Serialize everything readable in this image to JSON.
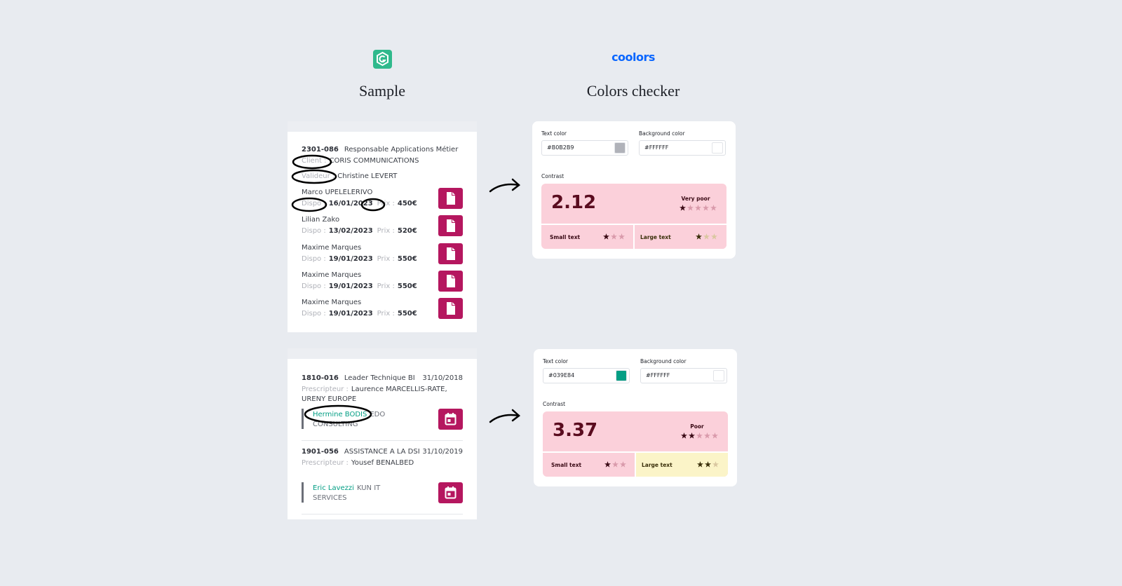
{
  "brand": "coolors",
  "sample": {
    "title": "Sample",
    "panels": [
      {
        "ref": "2301-086",
        "job": "Responsable Applications Métier",
        "client_label": "Client :",
        "client": "CORIS COMMUNICATIONS",
        "validator_label": "Valideur :",
        "validator": "Christine LEVERT",
        "candidates": [
          {
            "name": "Marco UPELELERIVO",
            "dispo_label": "Dispo :",
            "dispo": "16/01/2023",
            "prix_label": "Prix :",
            "prix": "450€"
          },
          {
            "name": "Lilian Zako",
            "dispo_label": "Dispo :",
            "dispo": "13/02/2023",
            "prix_label": "Prix :",
            "prix": "520€"
          },
          {
            "name": "Maxime Marques",
            "dispo_label": "Dispo :",
            "dispo": "19/01/2023",
            "prix_label": "Prix :",
            "prix": "550€"
          },
          {
            "name": "Maxime Marques",
            "dispo_label": "Dispo :",
            "dispo": "19/01/2023",
            "prix_label": "Prix :",
            "prix": "550€"
          },
          {
            "name": "Maxime Marques",
            "dispo_label": "Dispo :",
            "dispo": "19/01/2023",
            "prix_label": "Prix :",
            "prix": "550€"
          }
        ]
      },
      {
        "missions": [
          {
            "ref": "1810-016",
            "job": "Leader Technique BI",
            "date": "31/10/2018",
            "prescriber_label": "Prescripteur :",
            "prescriber": "Laurence MARCELLIS-RATE, URENY EUROPE",
            "contact": "Hermine BODIS",
            "company": "EDO CONSULTING"
          },
          {
            "ref": "1901-056",
            "job": "ASSISTANCE A LA DSI",
            "date": "31/10/2019",
            "prescriber_label": "Prescripteur :",
            "prescriber": "Yousef BENALBED",
            "contact": "Eric Lavezzi",
            "company": "KUN IT SERVICES"
          }
        ]
      }
    ]
  },
  "checker": {
    "title": "Colors checker",
    "cards": [
      {
        "text_color_label": "Text color",
        "text_color": "#B0B2B9",
        "bg_color_label": "Background color",
        "bg_color": "#FFFFFF",
        "contrast_label": "Contrast",
        "ratio": 2.12,
        "rating": "Very poor",
        "stars": 1,
        "small_text_label": "Small text",
        "small_stars": 1,
        "large_text_label": "Large text",
        "large_stars": 1,
        "panel_color": "#fbd0da",
        "large_panel_color": "#fbd0da"
      },
      {
        "text_color_label": "Text color",
        "text_color": "#039E84",
        "bg_color_label": "Background color",
        "bg_color": "#FFFFFF",
        "contrast_label": "Contrast",
        "ratio": 3.37,
        "rating": "Poor",
        "stars": 2,
        "small_text_label": "Small text",
        "small_stars": 1,
        "large_text_label": "Large text",
        "large_stars": 2,
        "panel_color": "#fbd0da",
        "large_panel_color": "#fbf4c8"
      }
    ]
  }
}
